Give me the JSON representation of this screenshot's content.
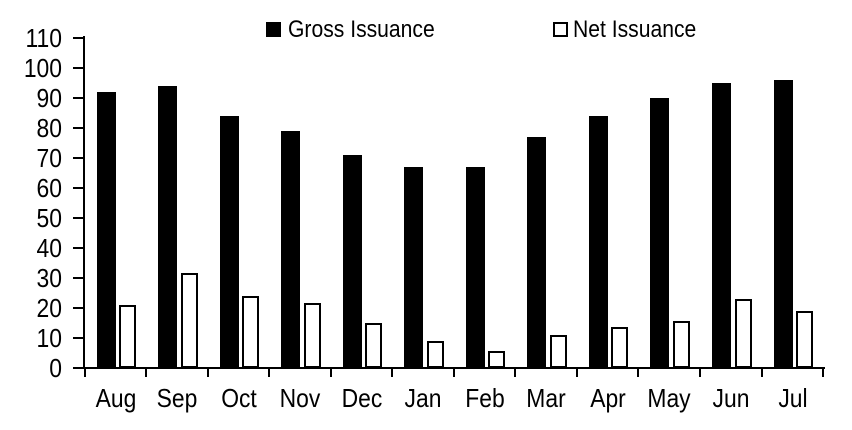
{
  "chart_data": {
    "type": "bar",
    "title": "",
    "xlabel": "",
    "ylabel": "",
    "categories": [
      "Aug",
      "Sep",
      "Oct",
      "Nov",
      "Dec",
      "Jan",
      "Feb",
      "Mar",
      "Apr",
      "May",
      "Jun",
      "Jul"
    ],
    "series": [
      {
        "name": "Gross Issuance",
        "values": [
          92,
          94,
          84,
          79,
          71,
          67,
          67,
          77,
          84,
          90,
          95,
          96
        ],
        "fill": "#000000",
        "stroke": "#000000"
      },
      {
        "name": "Net Issuance",
        "values": [
          21,
          31.5,
          24,
          21.5,
          15,
          9,
          5.5,
          11,
          13.5,
          15.5,
          23,
          19
        ],
        "fill": "#ffffff",
        "stroke": "#000000"
      }
    ],
    "ylim": [
      0,
      110
    ],
    "ytick_step": 10,
    "yticks": [
      0,
      10,
      20,
      30,
      40,
      50,
      60,
      70,
      80,
      90,
      100,
      110
    ],
    "grid": "off",
    "legend_position": "top",
    "axis_color": "#000000",
    "background_color": "#ffffff"
  }
}
